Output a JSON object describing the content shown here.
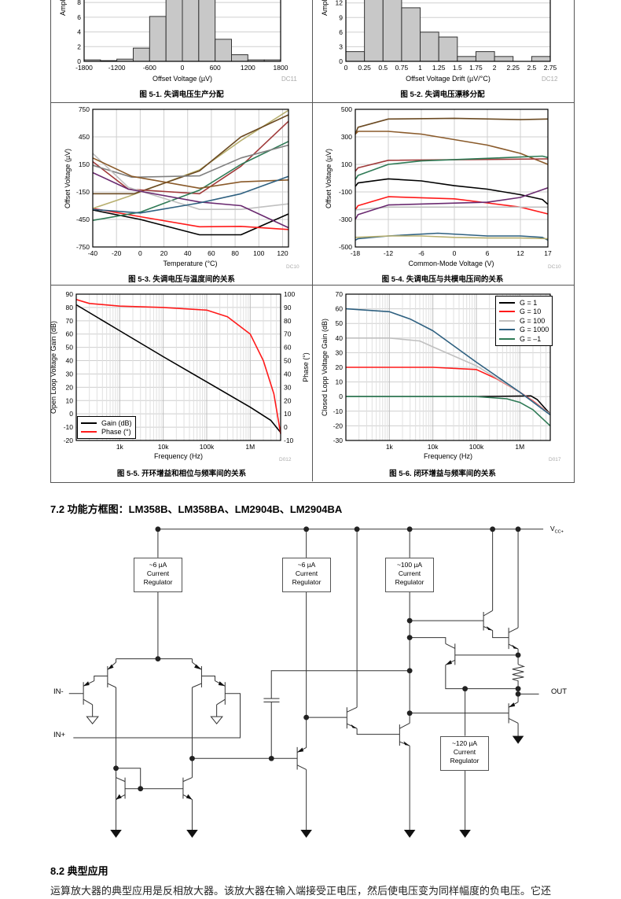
{
  "chart_data": [
    {
      "type": "bar",
      "title": "图 5-1. 失调电压生产分配",
      "code": "DC11",
      "xlabel": "Offset Voltage (µV)",
      "ylabel": "Amplifiers (%)",
      "bin_edges": [
        -1800,
        -1500,
        -1200,
        -900,
        -600,
        -300,
        0,
        300,
        600,
        900,
        1200,
        1500,
        1800
      ],
      "values": [
        0.2,
        0.1,
        0.3,
        1.8,
        6.1,
        10,
        10,
        10,
        3,
        0.9,
        0.2,
        0.2
      ],
      "xlim": [
        -1800,
        1800
      ],
      "ylim": [
        0,
        14
      ],
      "xticks": [
        -1800,
        -1200,
        -600,
        0,
        600,
        1200,
        1800
      ],
      "yticks": [
        0,
        2,
        4,
        6,
        8
      ]
    },
    {
      "type": "bar",
      "title": "图 5-2. 失调电压漂移分配",
      "code": "DC12",
      "xlabel": "Offset Voltage Drift (µV/°C)",
      "ylabel": "Amplifiers (%)",
      "bin_edges": [
        0,
        0.25,
        0.5,
        0.75,
        1,
        1.25,
        1.5,
        1.75,
        2,
        2.25,
        2.5,
        2.75
      ],
      "values": [
        2,
        14,
        14,
        11,
        6,
        5,
        1,
        2,
        1,
        0,
        1
      ],
      "xlim": [
        0,
        2.75
      ],
      "ylim": [
        0,
        21
      ],
      "xticks": [
        0,
        0.25,
        0.5,
        0.75,
        1,
        1.25,
        1.5,
        1.75,
        2,
        2.25,
        2.5,
        2.75
      ],
      "yticks": [
        0,
        3,
        6,
        9,
        12
      ]
    },
    {
      "type": "line",
      "title": "图 5-3. 失调电压与温度间的关系",
      "code": "DC10",
      "xlabel": "Temperature (°C)",
      "ylabel": "Offset Voltage (µV)",
      "xlim": [
        -40,
        125
      ],
      "ylim": [
        -750,
        750
      ],
      "xticks": [
        -40,
        -20,
        0,
        20,
        40,
        60,
        80,
        100,
        120
      ],
      "yticks": [
        -750,
        -450,
        -150,
        150,
        450,
        750
      ],
      "grid": true,
      "series": [
        {
          "color": "#000000",
          "points": [
            [
              -40,
              -347
            ],
            [
              0,
              -450
            ],
            [
              50,
              -617
            ],
            [
              85,
              -617
            ],
            [
              125,
              -390
            ]
          ]
        },
        {
          "color": "#ff1a1a",
          "points": [
            [
              -40,
              -330
            ],
            [
              0,
              -420
            ],
            [
              50,
              -530
            ],
            [
              85,
              -525
            ],
            [
              125,
              -560
            ]
          ]
        },
        {
          "color": "#b8b070",
          "points": [
            [
              -40,
              -330
            ],
            [
              -10,
              -200
            ],
            [
              50,
              90
            ],
            [
              85,
              410
            ],
            [
              125,
              740
            ]
          ]
        },
        {
          "color": "#6b4a22",
          "points": [
            [
              -40,
              -170
            ],
            [
              -5,
              -170
            ],
            [
              50,
              80
            ],
            [
              85,
              450
            ],
            [
              125,
              690
            ]
          ]
        },
        {
          "color": "#a03a3a",
          "points": [
            [
              -40,
              180
            ],
            [
              -10,
              -120
            ],
            [
              50,
              -170
            ],
            [
              85,
              130
            ],
            [
              125,
              620
            ]
          ]
        },
        {
          "color": "#2e7a55",
          "points": [
            [
              -40,
              -460
            ],
            [
              0,
              -370
            ],
            [
              50,
              -130
            ],
            [
              85,
              150
            ],
            [
              125,
              400
            ]
          ]
        },
        {
          "color": "#808080",
          "points": [
            [
              -40,
              140
            ],
            [
              -7,
              10
            ],
            [
              50,
              25
            ],
            [
              85,
              220
            ],
            [
              125,
              360
            ]
          ]
        },
        {
          "color": "#c0c0c0",
          "points": [
            [
              -40,
              270
            ],
            [
              -10,
              -100
            ],
            [
              50,
              -340
            ],
            [
              85,
              -340
            ],
            [
              125,
              -280
            ]
          ]
        },
        {
          "color": "#8a5a2a",
          "points": [
            [
              -40,
              220
            ],
            [
              -7,
              20
            ],
            [
              50,
              -110
            ],
            [
              85,
              -40
            ],
            [
              125,
              -20
            ]
          ]
        },
        {
          "color": "#6a2a70",
          "points": [
            [
              -40,
              60
            ],
            [
              -10,
              -120
            ],
            [
              50,
              -260
            ],
            [
              85,
              -300
            ],
            [
              125,
              -540
            ]
          ]
        },
        {
          "color": "#2e6080",
          "points": [
            [
              -40,
              -340
            ],
            [
              0,
              -380
            ],
            [
              50,
              -270
            ],
            [
              85,
              -170
            ],
            [
              125,
              20
            ]
          ]
        }
      ]
    },
    {
      "type": "line",
      "title": "图 5-4. 失调电压与共模电压间的关系",
      "code": "DC10",
      "xlabel": "Common-Mode Voltage (V)",
      "ylabel": "Offset Voltage (µV)",
      "xlim": [
        -18,
        17
      ],
      "ylim": [
        -500,
        500
      ],
      "xticks": [
        -18,
        -12,
        -6,
        0,
        6,
        12,
        17
      ],
      "yticks": [
        -500,
        -300,
        -100,
        100,
        300,
        500
      ],
      "grid": true,
      "series": [
        {
          "color": "#6b4a22",
          "points": [
            [
              -18,
              320
            ],
            [
              -17.5,
              370
            ],
            [
              -12,
              430
            ],
            [
              0,
              435
            ],
            [
              12,
              425
            ],
            [
              17,
              430
            ]
          ]
        },
        {
          "color": "#8a5a2a",
          "points": [
            [
              -18,
              320
            ],
            [
              -17.5,
              340
            ],
            [
              -12,
              340
            ],
            [
              -6,
              320
            ],
            [
              0,
              280
            ],
            [
              6,
              240
            ],
            [
              12,
              180
            ],
            [
              17,
              100
            ]
          ]
        },
        {
          "color": "#a03a3a",
          "points": [
            [
              -18,
              50
            ],
            [
              -17.5,
              75
            ],
            [
              -12,
              130
            ],
            [
              17,
              140
            ]
          ]
        },
        {
          "color": "#2e7a55",
          "points": [
            [
              -18,
              -10
            ],
            [
              -17.5,
              20
            ],
            [
              -12,
              100
            ],
            [
              -6,
              125
            ],
            [
              16,
              160
            ],
            [
              17,
              150
            ]
          ]
        },
        {
          "color": "#000000",
          "points": [
            [
              -18,
              -60
            ],
            [
              -17.5,
              -35
            ],
            [
              -12,
              -5
            ],
            [
              -6,
              -20
            ],
            [
              0,
              -55
            ],
            [
              6,
              -80
            ],
            [
              12,
              -120
            ],
            [
              16,
              -155
            ],
            [
              17,
              -190
            ]
          ]
        },
        {
          "color": "#ff1a1a",
          "points": [
            [
              -18,
              -230
            ],
            [
              -17.5,
              -200
            ],
            [
              -12,
              -135
            ],
            [
              0,
              -150
            ],
            [
              6,
              -180
            ],
            [
              12,
              -210
            ],
            [
              17,
              -260
            ]
          ]
        },
        {
          "color": "#c0c0c0",
          "points": [
            [
              -18,
              -230
            ],
            [
              -12,
              -210
            ],
            [
              17,
              -210
            ]
          ]
        },
        {
          "color": "#6a2a70",
          "points": [
            [
              -18,
              -300
            ],
            [
              -17.5,
              -265
            ],
            [
              -12,
              -195
            ],
            [
              6,
              -175
            ],
            [
              12,
              -140
            ],
            [
              17,
              -70
            ]
          ]
        },
        {
          "color": "#2e6080",
          "points": [
            [
              -18,
              -450
            ],
            [
              -17.5,
              -440
            ],
            [
              -12,
              -420
            ],
            [
              -3,
              -400
            ],
            [
              6,
              -420
            ],
            [
              12,
              -420
            ],
            [
              16,
              -430
            ],
            [
              17,
              -450
            ]
          ]
        },
        {
          "color": "#b8b070",
          "points": [
            [
              -18,
              -430
            ],
            [
              -12,
              -420
            ],
            [
              -6,
              -420
            ],
            [
              0,
              -430
            ],
            [
              6,
              -435
            ],
            [
              12,
              -435
            ],
            [
              17,
              -440
            ]
          ]
        }
      ]
    },
    {
      "type": "line",
      "title": "图 5-5. 开环增益和相位与频率间的关系",
      "code": "D012",
      "xlabel": "Frequency (Hz)",
      "ylabel": "Open Loop Voltage Gain (dB)",
      "ylabel_right": "Phase (°)",
      "xscale": "log",
      "xlim": [
        100,
        5000000
      ],
      "ylim": [
        -20,
        90
      ],
      "ylim_right": [
        -10,
        100
      ],
      "xticks": [
        1000,
        10000,
        100000,
        1000000
      ],
      "xtick_labels": [
        "1k",
        "10k",
        "100k",
        "1M"
      ],
      "yticks": [
        -20,
        -10,
        0,
        10,
        20,
        30,
        40,
        50,
        60,
        70,
        80,
        90
      ],
      "yticks_right": [
        -10,
        0,
        10,
        20,
        30,
        40,
        50,
        60,
        70,
        80,
        90,
        100
      ],
      "grid": true,
      "legend_position": "bottom-left",
      "series": [
        {
          "name": "Gain (dB)",
          "color": "#000000",
          "axis": "left",
          "points": [
            [
              100,
              82
            ],
            [
              1000,
              62.5
            ],
            [
              10000,
              43
            ],
            [
              100000,
              24
            ],
            [
              1000000,
              5
            ],
            [
              3000000,
              -5
            ],
            [
              5000000,
              -14
            ]
          ]
        },
        {
          "name": "Phase (°)",
          "color": "#ff1a1a",
          "axis": "right",
          "points": [
            [
              100,
              96
            ],
            [
              200,
              93
            ],
            [
              1000,
              91
            ],
            [
              10000,
              90
            ],
            [
              100000,
              88
            ],
            [
              300000,
              83
            ],
            [
              1000000,
              70
            ],
            [
              2000000,
              50
            ],
            [
              3500000,
              25
            ],
            [
              5000000,
              -5
            ]
          ]
        }
      ]
    },
    {
      "type": "line",
      "title": "图 5-6. 闭环增益与频率间的关系",
      "code": "D017",
      "xlabel": "Frequency (Hz)",
      "ylabel": "Closed Lopp Voltage Gain (dB)",
      "xscale": "log",
      "xlim": [
        100,
        5000000
      ],
      "ylim": [
        -30,
        70
      ],
      "xticks": [
        1000,
        10000,
        100000,
        1000000
      ],
      "xtick_labels": [
        "1k",
        "10k",
        "100k",
        "1M"
      ],
      "yticks": [
        -30,
        -20,
        -10,
        0,
        10,
        20,
        30,
        40,
        50,
        60,
        70
      ],
      "grid": true,
      "legend_position": "top-right",
      "series": [
        {
          "name": "G = 1",
          "color": "#000000",
          "points": [
            [
              100,
              0
            ],
            [
              100000,
              0
            ],
            [
              1000000,
              0.3
            ],
            [
              1800000,
              0.5
            ],
            [
              2500000,
              -2
            ],
            [
              5000000,
              -12
            ]
          ]
        },
        {
          "name": "G = 10",
          "color": "#ff1a1a",
          "points": [
            [
              100,
              20
            ],
            [
              10000,
              20
            ],
            [
              100000,
              18.5
            ],
            [
              300000,
              12
            ],
            [
              1000000,
              3
            ],
            [
              2000000,
              -3
            ],
            [
              5000000,
              -12
            ]
          ]
        },
        {
          "name": "G = 100",
          "color": "#c0c0c0",
          "points": [
            [
              100,
              40
            ],
            [
              1000,
              40
            ],
            [
              5000,
              38
            ],
            [
              10000,
              34
            ],
            [
              100000,
              21
            ],
            [
              1000000,
              3
            ],
            [
              5000000,
              -12
            ]
          ]
        },
        {
          "name": "G = 1000",
          "color": "#2e6080",
          "points": [
            [
              100,
              60
            ],
            [
              1000,
              58
            ],
            [
              3000,
              53
            ],
            [
              10000,
              45
            ],
            [
              100000,
              23.5
            ],
            [
              1000000,
              3
            ],
            [
              5000000,
              -12.5
            ]
          ]
        },
        {
          "name": "G = –1",
          "color": "#2e7a55",
          "points": [
            [
              100,
              0
            ],
            [
              100000,
              0
            ],
            [
              500000,
              -1.5
            ],
            [
              1000000,
              -4
            ],
            [
              2000000,
              -9
            ],
            [
              5000000,
              -20
            ]
          ]
        }
      ]
    }
  ],
  "section_72": "7.2 功能方框图：LM358B、LM358BA、LM2904B、LM2904BA",
  "circuit": {
    "vcc": "V",
    "vcc_sub": "CC+",
    "in_minus": "IN-",
    "in_plus": "IN+",
    "out": "OUT",
    "regulators": [
      {
        "current": "~6 µA",
        "line1": "Current",
        "line2": "Regulator"
      },
      {
        "current": "~6 µA",
        "line1": "Current",
        "line2": "Regulator"
      },
      {
        "current": "~100 µA",
        "line1": "Current",
        "line2": "Regulator"
      },
      {
        "current": "~120 µA",
        "line1": "Current",
        "line2": "Regulator"
      }
    ]
  },
  "section_82": "8.2 典型应用",
  "paragraph": "运算放大器的典型应用是反相放大器。该放大器在输入端接受正电压，然后使电压变为同样幅度的负电压。它还"
}
